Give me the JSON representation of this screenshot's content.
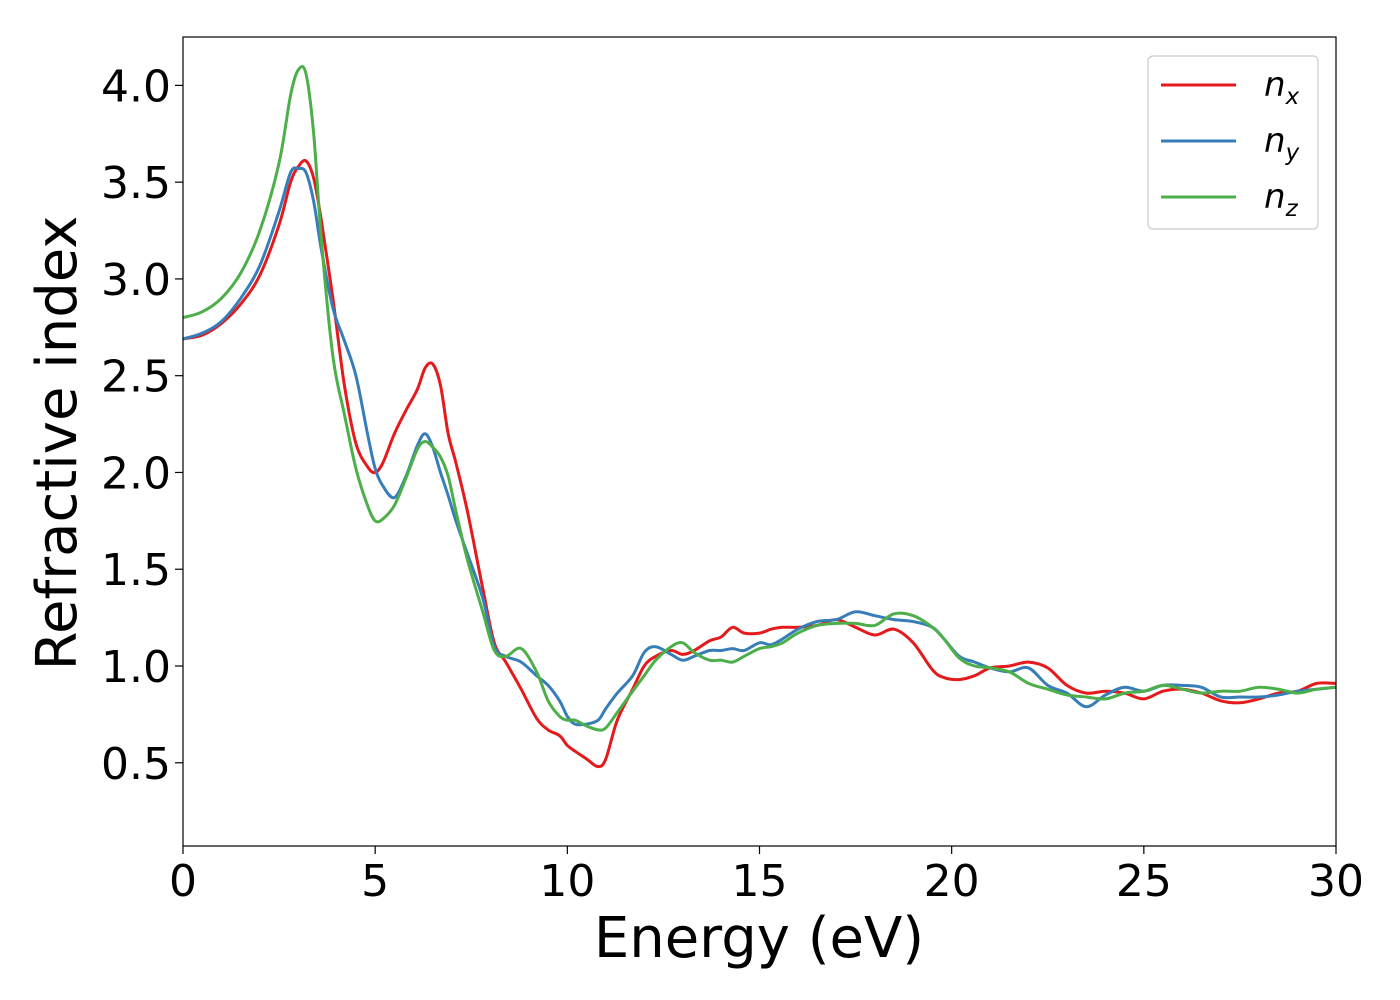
{
  "chart_data": {
    "type": "line",
    "xlabel": "Energy (eV)",
    "ylabel": "Refractive index",
    "xlim": [
      0,
      30
    ],
    "ylim": [
      0.07,
      4.25
    ],
    "xticks": [
      0,
      5,
      10,
      15,
      20,
      25,
      30
    ],
    "xtick_labels": [
      "0",
      "5",
      "10",
      "15",
      "20",
      "25",
      "30"
    ],
    "yticks": [
      0.5,
      1.0,
      1.5,
      2.0,
      2.5,
      3.0,
      3.5,
      4.0
    ],
    "ytick_labels": [
      "0.5",
      "1.0",
      "1.5",
      "2.0",
      "2.5",
      "3.0",
      "3.5",
      "4.0"
    ],
    "grid": false,
    "legend_position": "top-right",
    "series": [
      {
        "name": "n",
        "subscript": "x",
        "color": "#e41a1c",
        "x": [
          0,
          0.5,
          1,
          1.5,
          2,
          2.5,
          2.8,
          3.0,
          3.2,
          3.4,
          3.6,
          3.9,
          4.2,
          4.5,
          4.8,
          5.0,
          5.2,
          5.5,
          5.8,
          6.1,
          6.3,
          6.5,
          6.7,
          6.9,
          7.1,
          7.4,
          7.8,
          8.1,
          8.4,
          8.8,
          9.2,
          9.5,
          9.8,
          10.0,
          10.2,
          10.5,
          10.8,
          11.0,
          11.3,
          11.7,
          12.0,
          12.3,
          12.7,
          13.0,
          13.3,
          13.7,
          14.0,
          14.3,
          14.6,
          15.0,
          15.3,
          15.6,
          16.0,
          16.5,
          17.0,
          17.5,
          18.0,
          18.5,
          19.0,
          19.5,
          19.8,
          20.2,
          20.6,
          21.0,
          21.5,
          22.0,
          22.5,
          23.0,
          23.5,
          24.0,
          24.5,
          25.0,
          25.5,
          26.0,
          26.5,
          27.0,
          27.5,
          28.0,
          28.5,
          29.0,
          29.5,
          30.0
        ],
        "y": [
          2.69,
          2.71,
          2.77,
          2.87,
          3.02,
          3.28,
          3.5,
          3.58,
          3.61,
          3.52,
          3.3,
          2.9,
          2.45,
          2.15,
          2.03,
          2.0,
          2.05,
          2.2,
          2.32,
          2.43,
          2.54,
          2.56,
          2.45,
          2.2,
          2.05,
          1.8,
          1.4,
          1.12,
          1.02,
          0.88,
          0.73,
          0.67,
          0.64,
          0.59,
          0.56,
          0.52,
          0.48,
          0.52,
          0.72,
          0.88,
          1.0,
          1.05,
          1.08,
          1.06,
          1.08,
          1.13,
          1.15,
          1.2,
          1.17,
          1.17,
          1.19,
          1.2,
          1.2,
          1.21,
          1.24,
          1.2,
          1.16,
          1.19,
          1.12,
          0.98,
          0.94,
          0.93,
          0.95,
          0.99,
          1.0,
          1.02,
          0.99,
          0.9,
          0.86,
          0.87,
          0.86,
          0.83,
          0.87,
          0.88,
          0.86,
          0.82,
          0.81,
          0.83,
          0.86,
          0.87,
          0.91,
          0.91
        ]
      },
      {
        "name": "n",
        "subscript": "y",
        "color": "#377eb8",
        "x": [
          0,
          0.5,
          1,
          1.5,
          2,
          2.5,
          2.8,
          3.0,
          3.2,
          3.4,
          3.6,
          3.9,
          4.2,
          4.5,
          4.8,
          5.0,
          5.2,
          5.5,
          5.8,
          6.1,
          6.3,
          6.5,
          6.7,
          6.9,
          7.1,
          7.4,
          7.8,
          8.1,
          8.4,
          8.8,
          9.2,
          9.5,
          9.8,
          10.0,
          10.2,
          10.5,
          10.8,
          11.0,
          11.3,
          11.7,
          12.0,
          12.3,
          12.7,
          13.0,
          13.3,
          13.7,
          14.0,
          14.3,
          14.6,
          15.0,
          15.3,
          15.6,
          16.0,
          16.5,
          17.0,
          17.5,
          18.0,
          18.5,
          19.0,
          19.5,
          19.8,
          20.2,
          20.6,
          21.0,
          21.5,
          22.0,
          22.5,
          23.0,
          23.5,
          24.0,
          24.5,
          25.0,
          25.5,
          26.0,
          26.5,
          27.0,
          27.5,
          28.0,
          28.5,
          29.0,
          29.5,
          30.0
        ],
        "y": [
          2.69,
          2.72,
          2.78,
          2.9,
          3.07,
          3.35,
          3.55,
          3.57,
          3.55,
          3.4,
          3.15,
          2.85,
          2.68,
          2.5,
          2.2,
          2.02,
          1.93,
          1.87,
          1.98,
          2.14,
          2.2,
          2.13,
          2.0,
          1.88,
          1.75,
          1.58,
          1.35,
          1.1,
          1.05,
          1.02,
          0.95,
          0.9,
          0.82,
          0.74,
          0.7,
          0.7,
          0.72,
          0.78,
          0.86,
          0.95,
          1.07,
          1.1,
          1.06,
          1.03,
          1.05,
          1.08,
          1.08,
          1.09,
          1.08,
          1.12,
          1.11,
          1.14,
          1.19,
          1.23,
          1.24,
          1.28,
          1.26,
          1.24,
          1.23,
          1.2,
          1.14,
          1.05,
          1.02,
          0.99,
          0.97,
          0.99,
          0.9,
          0.86,
          0.79,
          0.85,
          0.89,
          0.87,
          0.9,
          0.9,
          0.89,
          0.84,
          0.84,
          0.84,
          0.85,
          0.87,
          0.88,
          0.89
        ]
      },
      {
        "name": "n",
        "subscript": "z",
        "color": "#4daf4a",
        "x": [
          0,
          0.5,
          1,
          1.5,
          2,
          2.5,
          2.8,
          3.0,
          3.2,
          3.4,
          3.6,
          3.9,
          4.2,
          4.5,
          4.8,
          5.0,
          5.2,
          5.5,
          5.8,
          6.1,
          6.3,
          6.5,
          6.7,
          6.9,
          7.1,
          7.4,
          7.8,
          8.1,
          8.4,
          8.8,
          9.2,
          9.5,
          9.8,
          10.0,
          10.2,
          10.5,
          10.8,
          11.0,
          11.3,
          11.7,
          12.0,
          12.3,
          12.7,
          13.0,
          13.3,
          13.7,
          14.0,
          14.3,
          14.6,
          15.0,
          15.3,
          15.6,
          16.0,
          16.5,
          17.0,
          17.5,
          18.0,
          18.5,
          19.0,
          19.5,
          19.8,
          20.2,
          20.6,
          21.0,
          21.5,
          22.0,
          22.5,
          23.0,
          23.5,
          24.0,
          24.5,
          25.0,
          25.5,
          26.0,
          26.5,
          27.0,
          27.5,
          28.0,
          28.5,
          29.0,
          29.5,
          30.0
        ],
        "y": [
          2.8,
          2.83,
          2.9,
          3.03,
          3.25,
          3.6,
          3.95,
          4.08,
          4.06,
          3.75,
          3.2,
          2.6,
          2.3,
          2.02,
          1.83,
          1.75,
          1.76,
          1.83,
          1.97,
          2.12,
          2.16,
          2.13,
          2.08,
          1.98,
          1.8,
          1.55,
          1.28,
          1.08,
          1.05,
          1.09,
          0.97,
          0.82,
          0.74,
          0.72,
          0.72,
          0.69,
          0.67,
          0.68,
          0.76,
          0.87,
          0.95,
          1.03,
          1.1,
          1.12,
          1.07,
          1.03,
          1.03,
          1.02,
          1.05,
          1.09,
          1.1,
          1.12,
          1.17,
          1.21,
          1.22,
          1.22,
          1.21,
          1.27,
          1.26,
          1.2,
          1.14,
          1.04,
          1.0,
          0.99,
          0.97,
          0.91,
          0.88,
          0.85,
          0.84,
          0.83,
          0.86,
          0.87,
          0.9,
          0.88,
          0.86,
          0.87,
          0.87,
          0.89,
          0.88,
          0.86,
          0.88,
          0.89
        ]
      }
    ]
  }
}
